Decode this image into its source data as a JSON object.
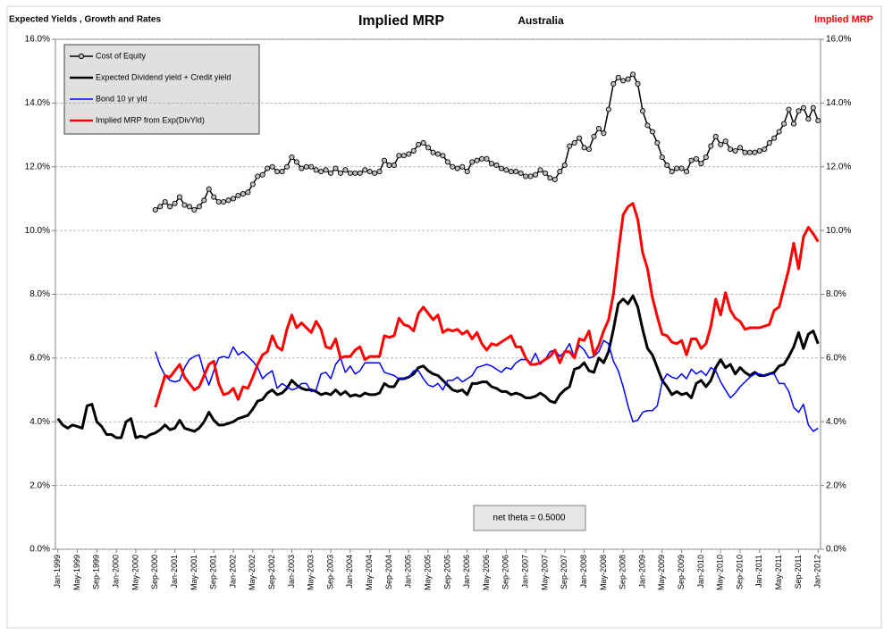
{
  "chart_data": {
    "type": "line",
    "title": "Implied MRP",
    "subtitle": "Australia",
    "left_header": "Expected Yields , Growth and Rates",
    "right_header": "Implied MRP",
    "annotation": "net theta = 0.5000",
    "categories": [
      "Jan-1999",
      null,
      null,
      null,
      "May-1999",
      null,
      null,
      null,
      "Sep-1999",
      null,
      null,
      null,
      "Jan-2000",
      null,
      null,
      null,
      "May-2000",
      null,
      null,
      null,
      "Sep-2000",
      null,
      null,
      null,
      "Jan-2001",
      null,
      null,
      null,
      "May-2001",
      null,
      null,
      null,
      "Sep-2001",
      null,
      null,
      null,
      "Jan-2002",
      null,
      null,
      null,
      "May-2002",
      null,
      null,
      null,
      "Sep-2002",
      null,
      null,
      null,
      "Jan-2003",
      null,
      null,
      null,
      "May-2003",
      null,
      null,
      null,
      "Sep-2003",
      null,
      null,
      null,
      "Jan-2004",
      null,
      null,
      null,
      "May-2004",
      null,
      null,
      null,
      "Sep-2004",
      null,
      null,
      null,
      "Jan-2005",
      null,
      null,
      null,
      "May-2005",
      null,
      null,
      null,
      "Sep-2005",
      null,
      null,
      null,
      "Jan-2006",
      null,
      null,
      null,
      "May-2006",
      null,
      null,
      null,
      "Sep-2006",
      null,
      null,
      null,
      "Jan-2007",
      null,
      null,
      null,
      "May-2007",
      null,
      null,
      null,
      "Sep-2007",
      null,
      null,
      null,
      "Jan-2008",
      null,
      null,
      null,
      "May-2008",
      null,
      null,
      null,
      "Sep-2008",
      null,
      null,
      null,
      "Jan-2009",
      null,
      null,
      null,
      "May-2009",
      null,
      null,
      null,
      "Sep-2009",
      null,
      null,
      null,
      "Jan-2010",
      null,
      null,
      null,
      "May-2010",
      null,
      null,
      null,
      "Sep-2010",
      null,
      null,
      null,
      "Jan-2011",
      null,
      null,
      null,
      "May-2011",
      null,
      null,
      null,
      "Sep-2011",
      null,
      null,
      null,
      "Jan-2012"
    ],
    "series": [
      {
        "name": "Cost of Equity",
        "color": "#000000",
        "marker": "circle",
        "marker_fill": "#c0c0c0",
        "width": 1.5,
        "values": [
          null,
          null,
          null,
          null,
          null,
          null,
          null,
          null,
          null,
          null,
          null,
          null,
          null,
          null,
          null,
          null,
          null,
          null,
          null,
          null,
          10.65,
          10.75,
          10.9,
          10.75,
          10.85,
          11.05,
          10.8,
          10.75,
          10.65,
          10.75,
          10.95,
          11.3,
          11.05,
          10.9,
          10.9,
          10.95,
          11.0,
          11.1,
          11.15,
          11.2,
          11.45,
          11.7,
          11.75,
          11.95,
          12.0,
          11.85,
          11.85,
          12.0,
          12.3,
          12.15,
          11.95,
          12.0,
          12.0,
          11.9,
          11.85,
          11.9,
          11.8,
          11.95,
          11.8,
          11.9,
          11.8,
          11.8,
          11.8,
          11.9,
          11.85,
          11.8,
          11.85,
          12.2,
          12.05,
          12.05,
          12.35,
          12.35,
          12.4,
          12.5,
          12.7,
          12.75,
          12.6,
          12.45,
          12.4,
          12.35,
          12.15,
          12.0,
          11.95,
          12.0,
          11.85,
          12.15,
          12.2,
          12.25,
          12.25,
          12.1,
          12.05,
          11.95,
          11.9,
          11.85,
          11.85,
          11.8,
          11.7,
          11.7,
          11.75,
          11.9,
          11.8,
          11.65,
          11.6,
          11.85,
          12.05,
          12.65,
          12.75,
          12.9,
          12.6,
          12.55,
          12.95,
          13.2,
          13.05,
          13.8,
          14.6,
          14.8,
          14.7,
          14.75,
          14.9,
          14.6,
          13.75,
          13.3,
          13.1,
          12.75,
          12.3,
          12.05,
          11.85,
          11.95,
          11.95,
          11.85,
          12.2,
          12.25,
          12.1,
          12.3,
          12.65,
          12.95,
          12.7,
          12.8,
          12.55,
          12.5,
          12.6,
          12.45,
          12.45,
          12.45,
          12.5,
          12.55,
          12.75,
          12.9,
          13.1,
          13.35,
          13.8,
          13.35,
          13.75,
          13.85,
          13.5,
          13.85,
          13.45
        ]
      },
      {
        "name": "Expected Dividend yield + Credit yield",
        "color": "#000000",
        "width": 3,
        "values": [
          4.1,
          3.9,
          3.8,
          3.9,
          3.85,
          3.8,
          4.5,
          4.55,
          4.0,
          3.85,
          3.6,
          3.6,
          3.5,
          3.5,
          4.0,
          4.1,
          3.5,
          3.55,
          3.5,
          3.6,
          3.65,
          3.75,
          3.9,
          3.75,
          3.8,
          4.05,
          3.8,
          3.75,
          3.7,
          3.8,
          4.0,
          4.3,
          4.05,
          3.9,
          3.9,
          3.95,
          4.0,
          4.1,
          4.15,
          4.2,
          4.4,
          4.65,
          4.7,
          4.9,
          5.0,
          4.85,
          4.9,
          5.05,
          5.3,
          5.15,
          5.05,
          5.0,
          5.0,
          4.95,
          4.85,
          4.9,
          4.85,
          5.0,
          4.85,
          4.95,
          4.8,
          4.85,
          4.8,
          4.9,
          4.85,
          4.85,
          4.9,
          5.2,
          5.1,
          5.1,
          5.35,
          5.35,
          5.4,
          5.5,
          5.7,
          5.75,
          5.6,
          5.5,
          5.45,
          5.3,
          5.15,
          5.0,
          4.95,
          5.0,
          4.85,
          5.2,
          5.2,
          5.25,
          5.25,
          5.1,
          5.05,
          4.95,
          4.95,
          4.85,
          4.9,
          4.85,
          4.75,
          4.75,
          4.8,
          4.9,
          4.8,
          4.65,
          4.6,
          4.85,
          5.0,
          5.1,
          5.65,
          5.7,
          5.85,
          5.6,
          5.55,
          6.0,
          5.85,
          6.2,
          6.9,
          7.7,
          7.85,
          7.7,
          7.95,
          7.6,
          6.9,
          6.3,
          6.1,
          5.7,
          5.3,
          5.1,
          4.85,
          4.95,
          4.85,
          4.9,
          4.75,
          5.2,
          5.3,
          5.1,
          5.3,
          5.7,
          5.95,
          5.7,
          5.8,
          5.5,
          5.7,
          5.55,
          5.45,
          5.55,
          5.45,
          5.45,
          5.5,
          5.55,
          5.75,
          5.8,
          6.05,
          6.35,
          6.8,
          6.3,
          6.75,
          6.85,
          6.45
        ]
      },
      {
        "name": "Bond 10 yr yld",
        "color": "#0000ff",
        "width": 1.5,
        "values": [
          null,
          null,
          null,
          null,
          null,
          null,
          null,
          null,
          null,
          null,
          null,
          null,
          null,
          null,
          null,
          null,
          null,
          null,
          null,
          null,
          6.2,
          5.75,
          5.45,
          5.3,
          5.25,
          5.3,
          5.7,
          5.95,
          6.05,
          6.1,
          5.55,
          5.15,
          5.6,
          6.0,
          6.05,
          6.0,
          6.35,
          6.1,
          6.2,
          6.05,
          5.9,
          5.7,
          5.35,
          5.5,
          5.6,
          5.05,
          5.2,
          5.1,
          5.0,
          5.05,
          5.2,
          5.2,
          4.95,
          5.0,
          5.5,
          5.55,
          5.35,
          5.8,
          6.0,
          5.55,
          5.75,
          5.5,
          5.6,
          5.85,
          5.85,
          5.85,
          5.85,
          5.55,
          5.5,
          5.45,
          5.35,
          5.35,
          5.4,
          5.6,
          5.6,
          5.35,
          5.15,
          5.1,
          5.2,
          5.0,
          5.3,
          5.3,
          5.4,
          5.25,
          5.35,
          5.45,
          5.7,
          5.75,
          5.8,
          5.75,
          5.65,
          5.55,
          5.7,
          5.65,
          5.85,
          5.95,
          5.95,
          5.85,
          6.15,
          5.8,
          5.95,
          6.2,
          6.25,
          6.05,
          6.2,
          6.45,
          6.0,
          6.4,
          6.25,
          6.0,
          6.05,
          6.2,
          6.55,
          6.45,
          5.9,
          5.6,
          5.1,
          4.5,
          4.0,
          4.05,
          4.3,
          4.35,
          4.35,
          4.5,
          5.25,
          5.5,
          5.4,
          5.35,
          5.5,
          5.35,
          5.65,
          5.5,
          5.6,
          5.45,
          5.7,
          5.6,
          5.25,
          5.0,
          4.75,
          4.9,
          5.1,
          5.25,
          5.4,
          5.5,
          5.5,
          5.45,
          5.5,
          5.5,
          5.2,
          5.2,
          4.95,
          4.45,
          4.3,
          4.55,
          3.9,
          3.7,
          3.8
        ]
      },
      {
        "name": "Implied MRP from Exp(DivYld)",
        "color": "#ff0000",
        "width": 3,
        "values": [
          null,
          null,
          null,
          null,
          null,
          null,
          null,
          null,
          null,
          null,
          null,
          null,
          null,
          null,
          null,
          null,
          null,
          null,
          null,
          null,
          4.45,
          4.95,
          5.45,
          5.4,
          5.6,
          5.8,
          5.4,
          5.2,
          5.0,
          5.1,
          5.45,
          5.8,
          5.9,
          5.2,
          4.85,
          4.9,
          5.05,
          4.7,
          5.1,
          5.05,
          5.4,
          5.8,
          6.1,
          6.2,
          6.7,
          6.35,
          6.25,
          6.9,
          7.35,
          6.95,
          7.1,
          6.95,
          6.8,
          7.15,
          6.9,
          6.35,
          6.3,
          6.6,
          6.0,
          6.05,
          6.05,
          6.25,
          6.35,
          5.95,
          6.05,
          6.05,
          6.05,
          6.7,
          6.65,
          6.7,
          7.25,
          7.05,
          7.0,
          6.85,
          7.4,
          7.6,
          7.4,
          7.2,
          7.35,
          6.8,
          6.9,
          6.85,
          6.9,
          6.75,
          6.85,
          6.6,
          6.8,
          6.45,
          6.25,
          6.45,
          6.4,
          6.5,
          6.6,
          6.7,
          6.35,
          6.35,
          6.0,
          5.8,
          5.8,
          5.85,
          5.95,
          6.05,
          6.25,
          5.85,
          6.2,
          6.2,
          6.0,
          6.6,
          6.55,
          6.85,
          6.1,
          6.4,
          6.85,
          7.2,
          8.0,
          9.3,
          10.5,
          10.75,
          10.85,
          10.35,
          9.3,
          8.8,
          7.9,
          7.3,
          6.75,
          6.7,
          6.5,
          6.45,
          6.55,
          6.1,
          6.6,
          6.6,
          6.3,
          6.45,
          7.0,
          7.85,
          7.35,
          8.05,
          7.5,
          7.25,
          7.15,
          6.9,
          6.95,
          6.95,
          6.95,
          7.0,
          7.05,
          7.5,
          7.6,
          8.2,
          8.8,
          9.6,
          8.8,
          9.8,
          10.1,
          9.9,
          9.65
        ]
      }
    ],
    "ylim": [
      0,
      16
    ],
    "yticks": [
      {
        "value": 0,
        "label": "0.0%"
      },
      {
        "value": 2,
        "label": "2.0%"
      },
      {
        "value": 4,
        "label": "4.0%"
      },
      {
        "value": 6,
        "label": "6.0%"
      },
      {
        "value": 8,
        "label": "8.0%"
      },
      {
        "value": 10,
        "label": "10.0%"
      },
      {
        "value": 12,
        "label": "12.0%"
      },
      {
        "value": 14,
        "label": "14.0%"
      },
      {
        "value": 16,
        "label": "16.0%"
      }
    ],
    "y2lim": [
      0,
      16
    ],
    "y2ticks": [
      {
        "value": 0,
        "label": "0.0%"
      },
      {
        "value": 2,
        "label": "2.0%"
      },
      {
        "value": 4,
        "label": "4.0%"
      },
      {
        "value": 6,
        "label": "6.0%"
      },
      {
        "value": 8,
        "label": "8.0%"
      },
      {
        "value": 10,
        "label": "10.0%"
      },
      {
        "value": 12,
        "label": "12.0%"
      },
      {
        "value": 14,
        "label": "14.0%"
      },
      {
        "value": 16,
        "label": "16.0%"
      }
    ],
    "grid": true,
    "legend": "top-left"
  }
}
